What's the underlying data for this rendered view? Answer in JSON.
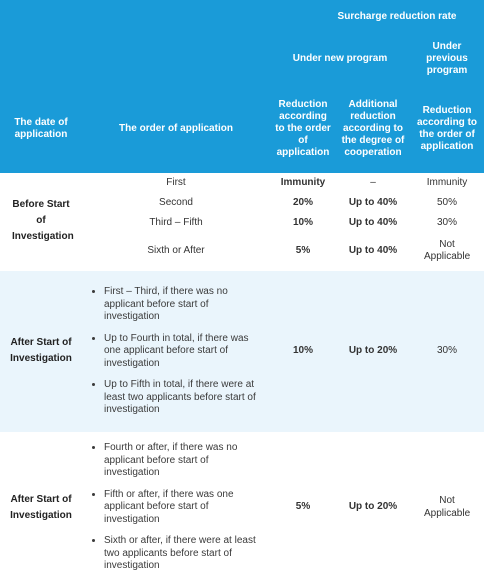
{
  "header": {
    "surcharge_rate": "Surcharge reduction rate",
    "under_new_program": "Under new program",
    "under_previous_program": "Under previous program",
    "date_of_application": "The date of application",
    "order_of_application": "The order of application",
    "reduction_order": "Reduction according to the order of application",
    "additional_reduction": "Additional reduction according to the degree of cooperation",
    "reduction_order_prev": "Reduction according to the order of application"
  },
  "before_start": {
    "label": "Before Start of Investigation",
    "rows": [
      {
        "order": "First",
        "new_order": "Immunity",
        "additional": "–",
        "previous": "Immunity"
      },
      {
        "order": "Second",
        "new_order": "20%",
        "additional": "Up to 40%",
        "previous": "50%"
      },
      {
        "order": "Third – Fifth",
        "new_order": "10%",
        "additional": "Up to 40%",
        "previous": "30%"
      },
      {
        "order": "Sixth or After",
        "new_order": "5%",
        "additional": "Up to 40%",
        "previous": "Not Applicable"
      }
    ]
  },
  "after_start_1": {
    "label": "After Start of Investigation",
    "conditions": [
      "First – Third, if there was no applicant before start of investigation",
      "Up to Fourth in total, if there was one applicant before start of investigation",
      "Up to Fifth in total, if there were at least two applicants before start of investigation"
    ],
    "new_order": "10%",
    "additional": "Up to 20%",
    "previous": "30%"
  },
  "after_start_2": {
    "label": "After Start of Investigation",
    "conditions": [
      "Fourth or after, if there was no applicant before start of investigation",
      "Fifth or after, if there was one applicant before start of investigation",
      "Sixth or after, if there were at least two applicants before start of investigation"
    ],
    "new_order": "5%",
    "additional": "Up to 20%",
    "previous": "Not Applicable"
  },
  "colors": {
    "header_bg": "#1a9bd8",
    "shaded_row": "#eaf5fc"
  }
}
